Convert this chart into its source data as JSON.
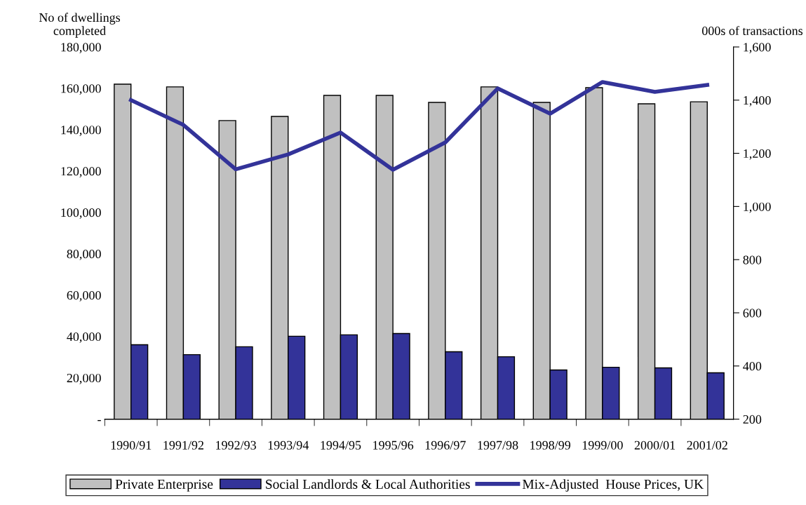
{
  "chart_data": {
    "type": "bar",
    "categories": [
      "1990/91",
      "1991/92",
      "1992/93",
      "1993/94",
      "1994/95",
      "1995/96",
      "1996/97",
      "1997/98",
      "1998/99",
      "1999/00",
      "2000/01",
      "2001/02"
    ],
    "ylabel": "No of dwellings\ncompleted",
    "y2label": "000s of transactions",
    "ylim": [
      0,
      180000
    ],
    "yticks": [
      {
        "value": 0,
        "label": "-"
      },
      {
        "value": 20000,
        "label": "20,000"
      },
      {
        "value": 40000,
        "label": "40,000"
      },
      {
        "value": 60000,
        "label": "60,000"
      },
      {
        "value": 80000,
        "label": "80,000"
      },
      {
        "value": 100000,
        "label": "100,000"
      },
      {
        "value": 120000,
        "label": "120,000"
      },
      {
        "value": 140000,
        "label": "140,000"
      },
      {
        "value": 160000,
        "label": "160,000"
      },
      {
        "value": 180000,
        "label": "180,000"
      }
    ],
    "y2lim": [
      200,
      1600
    ],
    "y2ticks": [
      200,
      400,
      600,
      800,
      {
        "value": 1000,
        "label": "1,000"
      },
      {
        "value": 1200,
        "label": "1,200"
      },
      {
        "value": 1400,
        "label": "1,400"
      },
      {
        "value": 1600,
        "label": "1,600"
      }
    ],
    "series": [
      {
        "name": "Private Enterprise",
        "color": "#c0c0c0",
        "values": [
          162000,
          160700,
          144400,
          146400,
          156600,
          156600,
          153200,
          160700,
          153200,
          160300,
          152500,
          153500
        ]
      },
      {
        "name": "Social Landlords & Local Authorities",
        "color": "#333399",
        "values": [
          36000,
          31200,
          35000,
          40100,
          40800,
          41400,
          32600,
          30200,
          23800,
          25100,
          24800,
          22400
        ]
      },
      {
        "name": "Mix-Adjusted  House Prices, UK",
        "type": "line",
        "axis": "y2",
        "color": "#333399",
        "values": [
          1400,
          1307,
          1140,
          1196,
          1278,
          1138,
          1241,
          1444,
          1349,
          1468,
          1431,
          1457
        ]
      }
    ],
    "grid": false,
    "legend": "bottom",
    "marker": "none",
    "line_style": "solid"
  }
}
